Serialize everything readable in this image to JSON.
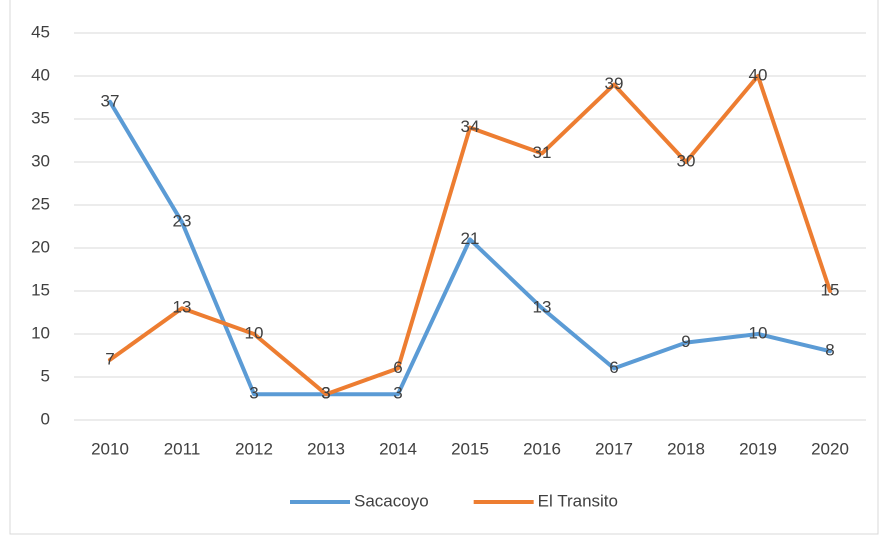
{
  "chart_data": {
    "type": "line",
    "categories": [
      "2010",
      "2011",
      "2012",
      "2013",
      "2014",
      "2015",
      "2016",
      "2017",
      "2018",
      "2019",
      "2020"
    ],
    "series": [
      {
        "name": "Sacacoyo",
        "color": "#5b9bd5",
        "values": [
          37,
          23,
          3,
          3,
          3,
          21,
          13,
          6,
          9,
          10,
          8
        ]
      },
      {
        "name": "El Transito",
        "color": "#ed7d31",
        "values": [
          7,
          13,
          10,
          3,
          6,
          34,
          31,
          39,
          30,
          40,
          15
        ]
      }
    ],
    "ylim": [
      0,
      45
    ],
    "yticks": [
      0,
      5,
      10,
      15,
      20,
      25,
      30,
      35,
      40,
      45
    ],
    "grid": true,
    "legend": "bottom"
  }
}
